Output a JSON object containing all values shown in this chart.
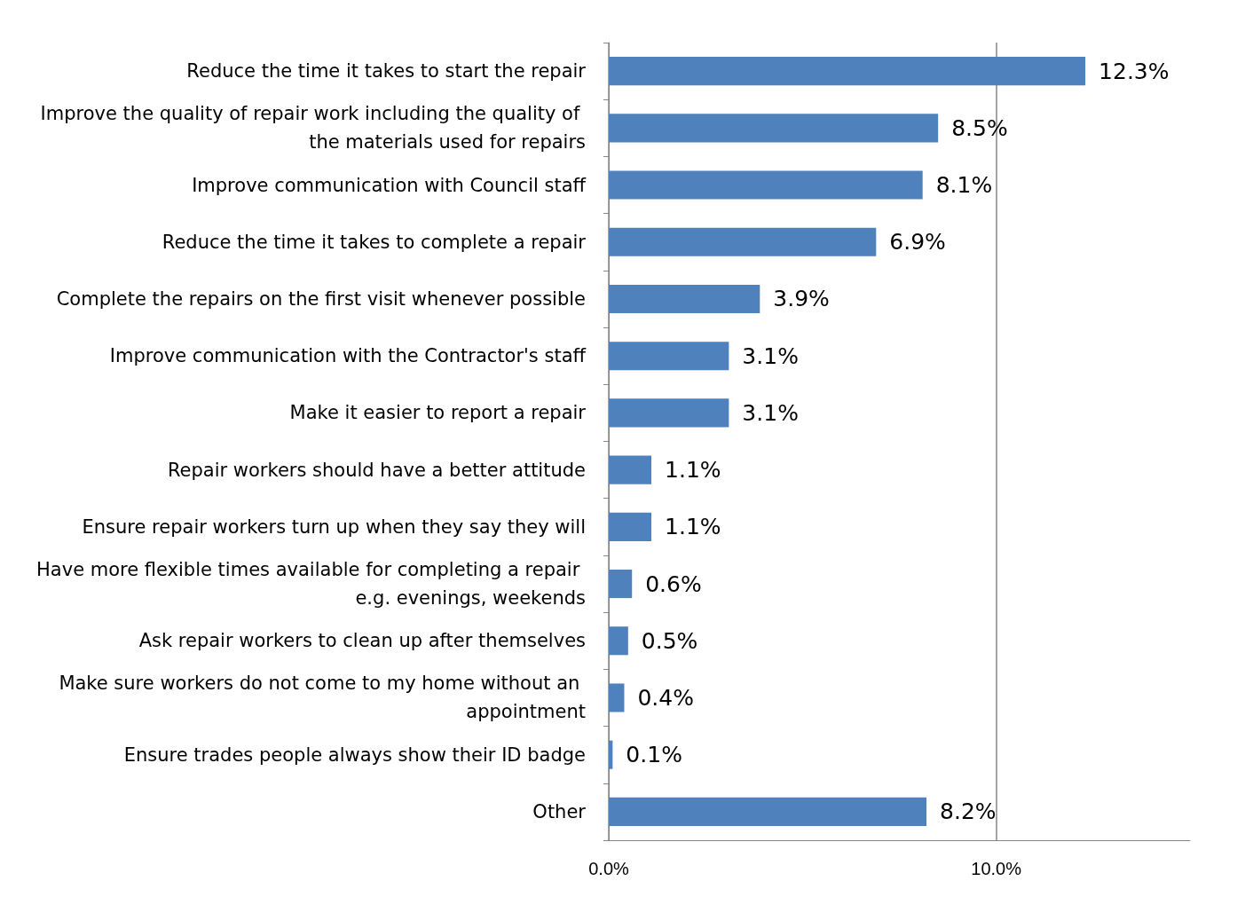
{
  "chart_data": {
    "type": "bar",
    "orientation": "horizontal",
    "categories": [
      "Reduce the time it takes to start the repair",
      "Improve the quality of repair work including the quality of the materials used for repairs",
      "Improve communication with Council staff",
      "Reduce the time it takes to complete a repair",
      "Complete the repairs on the first visit whenever possible",
      "Improve communication with the Contractor's staff",
      "Make it easier to report a repair",
      "Repair workers should have a better attitude",
      "Ensure repair workers turn up when they say they will",
      "Have more flexible times available for completing a repair e.g. evenings, weekends",
      "Ask repair workers to clean up after themselves",
      "Make sure workers do not come to my home without an appointment",
      "Ensure trades people always show their ID badge",
      "Other"
    ],
    "values": [
      12.3,
      8.5,
      8.1,
      6.9,
      3.9,
      3.1,
      3.1,
      1.1,
      1.1,
      0.6,
      0.5,
      0.4,
      0.1,
      8.2
    ],
    "value_labels": [
      "12.3%",
      "8.5%",
      "8.1%",
      "6.9%",
      "3.9%",
      "3.1%",
      "3.1%",
      "1.1%",
      "1.1%",
      "0.6%",
      "0.5%",
      "0.4%",
      "0.1%",
      "8.2%"
    ],
    "color": "#4f81bd",
    "xlim": [
      0,
      15
    ],
    "xticks": [
      {
        "value": 0,
        "label": "0.0%"
      },
      {
        "value": 10,
        "label": "10.0%"
      }
    ],
    "grid": "x"
  }
}
